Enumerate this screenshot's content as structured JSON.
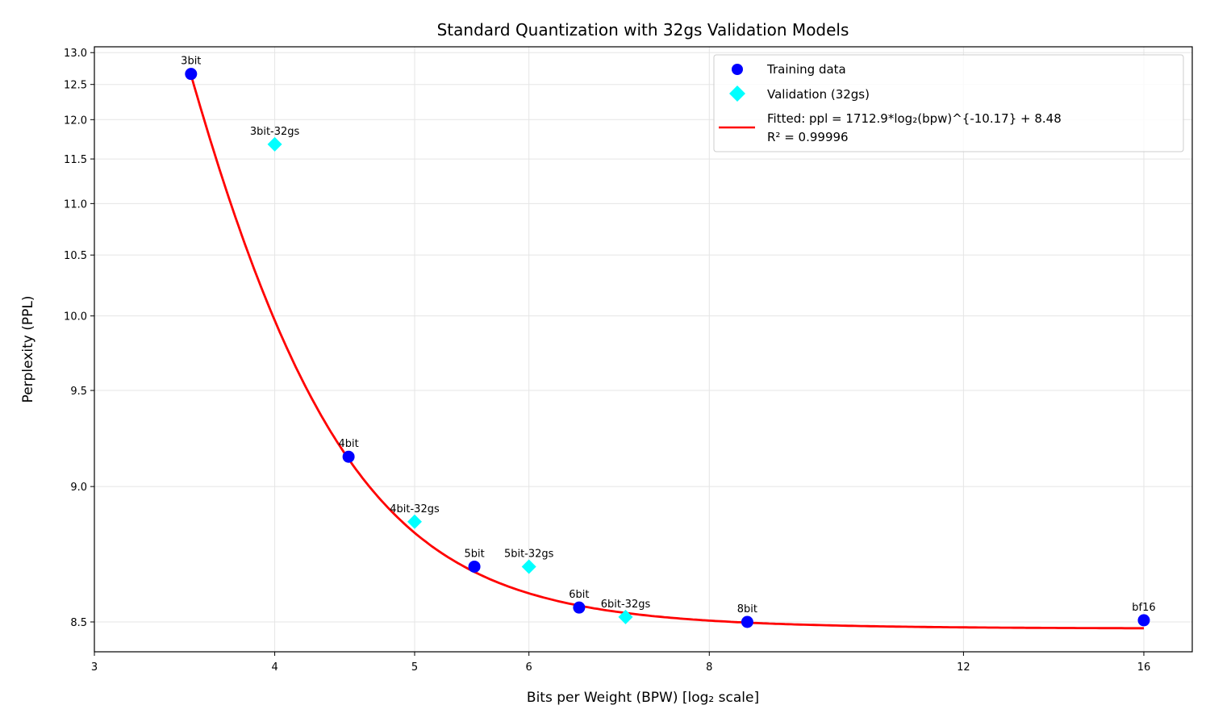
{
  "chart_data": {
    "type": "scatter",
    "title": "Standard Quantization with 32gs Validation Models",
    "xlabel": "Bits per Weight (BPW) [log₂ scale]",
    "ylabel": "Perplexity (PPL)",
    "xscale": "log2",
    "yscale": "log(ppl - 7.5)",
    "xlim": [
      3,
      17.3
    ],
    "ylim": [
      8.415,
      13.1
    ],
    "grid": true,
    "x_ticks": [
      3,
      4,
      5,
      6,
      8,
      12,
      16
    ],
    "x_tick_labels": [
      "3",
      "4",
      "5",
      "6",
      "8",
      "12",
      "16"
    ],
    "y_ticks": [
      8.5,
      9.0,
      9.5,
      10.0,
      10.5,
      11.0,
      11.5,
      12.0,
      12.5,
      13.0
    ],
    "y_tick_labels": [
      "8.5",
      "9.0",
      "9.5",
      "10.0",
      "10.5",
      "11.0",
      "11.5",
      "12.0",
      "12.5",
      "13.0"
    ],
    "legend_position": "top-right",
    "series": [
      {
        "name": "Training data",
        "marker": "circle",
        "color": "#0000ff",
        "points": [
          {
            "label": "3bit",
            "x": 3.5,
            "y": 12.66
          },
          {
            "label": "4bit",
            "x": 4.5,
            "y": 9.14
          },
          {
            "label": "5bit",
            "x": 5.5,
            "y": 8.68
          },
          {
            "label": "6bit",
            "x": 6.5,
            "y": 8.544
          },
          {
            "label": "8bit",
            "x": 8.5,
            "y": 8.5
          },
          {
            "label": "bf16",
            "x": 16,
            "y": 8.505
          }
        ]
      },
      {
        "name": "Validation (32gs)",
        "marker": "diamond",
        "color": "#00ffff",
        "points": [
          {
            "label": "3bit-32gs",
            "x": 4.0,
            "y": 11.68
          },
          {
            "label": "4bit-32gs",
            "x": 5.0,
            "y": 8.85
          },
          {
            "label": "5bit-32gs",
            "x": 6.0,
            "y": 8.68
          },
          {
            "label": "6bit-32gs",
            "x": 7.0,
            "y": 8.515
          }
        ]
      }
    ],
    "fit": {
      "name": "Fitted: ppl = 1712.9*log₂(bpw)^{-10.17} + 8.48",
      "r2_label": "R² = 0.99996",
      "color": "#ff0000",
      "a": 1712.9,
      "b": -10.17,
      "c": 8.48,
      "x_range": [
        3.5,
        16
      ]
    }
  }
}
